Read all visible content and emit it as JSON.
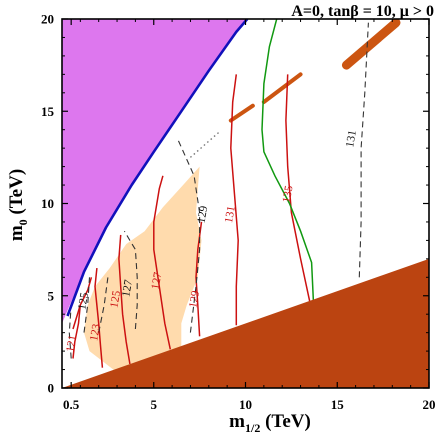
{
  "chart_data": {
    "type": "contour",
    "title": "A=0, tanβ = 10, μ > 0",
    "xlabel": "m",
    "xlabel_sub": "1/2",
    "xlabel_unit": " (TeV)",
    "ylabel": "m",
    "ylabel_sub": "0",
    "ylabel_unit": " (TeV)",
    "xlim": [
      0,
      20
    ],
    "ylim": [
      0,
      20
    ],
    "grid": false,
    "x_ticks": [
      {
        "v": 0.5,
        "label": "0.5"
      },
      {
        "v": 5,
        "label": "5"
      },
      {
        "v": 10,
        "label": "10"
      },
      {
        "v": 15,
        "label": "15"
      },
      {
        "v": 20,
        "label": "20"
      }
    ],
    "y_ticks": [
      {
        "v": 0,
        "label": "0"
      },
      {
        "v": 5,
        "label": "5"
      },
      {
        "v": 10,
        "label": "10"
      },
      {
        "v": 15,
        "label": "15"
      },
      {
        "v": 20,
        "label": "20"
      }
    ],
    "colors": {
      "excluded_top": "#dd77ee",
      "excluded_bottom": "#bb4411",
      "dm_band": "#cc5511",
      "peach_band": "#ffdbad",
      "mh_contour": "#cc1111",
      "dashed_contour": "#333333",
      "green_line": "#119911",
      "blue_boundary": "#1111bb"
    },
    "regions": {
      "top_left": [
        [
          0,
          20
        ],
        [
          10.1,
          20
        ],
        [
          9.5,
          19.3
        ],
        [
          8.0,
          17.2
        ],
        [
          6.5,
          15.0
        ],
        [
          5.0,
          12.8
        ],
        [
          3.8,
          11.0
        ],
        [
          2.4,
          8.7
        ],
        [
          1.2,
          6.3
        ],
        [
          0,
          3.5
        ]
      ],
      "bottom_triangle": [
        [
          0,
          0
        ],
        [
          20,
          0
        ],
        [
          20,
          7.0
        ]
      ],
      "peach": [
        [
          1.5,
          2.0
        ],
        [
          1.2,
          3.0
        ],
        [
          1.4,
          4.5
        ],
        [
          1.8,
          5.5
        ],
        [
          2.6,
          6.5
        ],
        [
          3.5,
          7.8
        ],
        [
          4.5,
          8.5
        ],
        [
          5.5,
          9.8
        ],
        [
          6.6,
          11.0
        ],
        [
          7.5,
          12.0
        ],
        [
          7.4,
          10.8
        ],
        [
          7.3,
          9.5
        ],
        [
          7.6,
          8.0
        ],
        [
          7.4,
          6.0
        ],
        [
          6.8,
          4.5
        ],
        [
          6.5,
          3.5
        ],
        [
          6.5,
          2.2
        ],
        [
          4.0,
          1.0
        ],
        [
          2.8,
          1.0
        ]
      ]
    },
    "blue_boundary": [
      [
        0.3,
        3.9
      ],
      [
        1.2,
        6.3
      ],
      [
        2.4,
        8.7
      ],
      [
        3.8,
        11.0
      ],
      [
        5.0,
        12.8
      ],
      [
        6.5,
        15.0
      ],
      [
        8.0,
        17.2
      ],
      [
        9.5,
        19.3
      ],
      [
        10.1,
        20.0
      ]
    ],
    "dm_funnel": [
      {
        "x": [
          15.5,
          18.2
        ],
        "y": [
          17.5,
          19.8
        ]
      },
      {
        "x": [
          11.0,
          13.0
        ],
        "y": [
          15.5,
          17.0
        ]
      },
      {
        "x": [
          9.2,
          10.4
        ],
        "y": [
          14.5,
          15.3
        ]
      }
    ],
    "green_line": [
      [
        11.7,
        20.0
      ],
      [
        11.3,
        18.5
      ],
      [
        11.0,
        16.5
      ],
      [
        10.9,
        14.0
      ],
      [
        11.0,
        12.8
      ],
      [
        11.6,
        11.5
      ],
      [
        12.4,
        10.0
      ],
      [
        13.0,
        8.5
      ],
      [
        13.6,
        6.8
      ],
      [
        13.7,
        4.7
      ]
    ],
    "contours": [
      {
        "label": "121",
        "style": "solid",
        "pts": [
          [
            0.6,
            1.6
          ],
          [
            0.7,
            2.5
          ],
          [
            0.9,
            3.5
          ],
          [
            1.0,
            4.5
          ]
        ]
      },
      {
        "label": "123",
        "style": "solid",
        "pts": [
          [
            2.2,
            1.1
          ],
          [
            2.1,
            2.3
          ],
          [
            2.0,
            3.5
          ],
          [
            1.8,
            5.5
          ],
          [
            1.9,
            6.5
          ]
        ]
      },
      {
        "label": "125",
        "style": "solid",
        "pts": [
          [
            3.7,
            1.3
          ],
          [
            3.5,
            2.5
          ],
          [
            3.3,
            4.0
          ],
          [
            3.2,
            5.5
          ],
          [
            3.1,
            7.0
          ],
          [
            3.2,
            8.3
          ]
        ]
      },
      {
        "label": "127",
        "style": "solid",
        "pts": [
          [
            5.9,
            2.1
          ],
          [
            5.6,
            3.5
          ],
          [
            5.3,
            5.5
          ],
          [
            5.0,
            7.5
          ],
          [
            5.0,
            9.0
          ],
          [
            5.3,
            10.8
          ],
          [
            5.5,
            11.5
          ]
        ]
      },
      {
        "label": "129",
        "style": "solid",
        "pts": [
          [
            7.5,
            2.8
          ],
          [
            7.4,
            4.5
          ],
          [
            7.3,
            6.0
          ],
          [
            7.4,
            7.5
          ],
          [
            7.6,
            9.0
          ]
        ]
      },
      {
        "label": "131",
        "style": "solid",
        "pts": [
          [
            9.5,
            3.4
          ],
          [
            9.5,
            5.5
          ],
          [
            9.6,
            8.0
          ],
          [
            9.4,
            10.5
          ],
          [
            9.2,
            13.0
          ],
          [
            9.3,
            15.5
          ],
          [
            9.5,
            17.0
          ]
        ]
      },
      {
        "label": "135",
        "style": "solid",
        "pts": [
          [
            13.5,
            4.7
          ],
          [
            13.0,
            7.0
          ],
          [
            12.5,
            9.5
          ],
          [
            12.3,
            12.0
          ],
          [
            12.2,
            14.5
          ],
          [
            12.3,
            17.0
          ]
        ]
      },
      {
        "label": "",
        "style": "solid",
        "pts": [
          [
            0.6,
            3.2
          ],
          [
            1.0,
            4.5
          ],
          [
            1.4,
            5.3
          ],
          [
            1.6,
            6.0
          ]
        ]
      },
      {
        "label": "",
        "style": "dashed",
        "pts": [
          [
            0.5,
            1.6
          ],
          [
            0.4,
            3.0
          ],
          [
            0.5,
            4.5
          ]
        ]
      },
      {
        "label": "",
        "style": "dashed",
        "pts": [
          [
            1.2,
            3.0
          ],
          [
            1.4,
            4.5
          ],
          [
            1.5,
            6.0
          ]
        ]
      },
      {
        "label": "",
        "style": "dashed",
        "pts": [
          [
            2.0,
            3.0
          ],
          [
            2.3,
            4.5
          ],
          [
            2.5,
            6.0
          ]
        ]
      },
      {
        "label": "127",
        "style": "dashed",
        "pts": [
          [
            4.0,
            3.2
          ],
          [
            4.1,
            4.5
          ],
          [
            4.1,
            6.0
          ],
          [
            4.0,
            7.5
          ],
          [
            3.4,
            8.5
          ]
        ]
      },
      {
        "label": "129",
        "style": "dashed",
        "pts": [
          [
            7.0,
            3.0
          ],
          [
            7.3,
            5.5
          ],
          [
            7.5,
            7.5
          ],
          [
            7.5,
            9.5
          ],
          [
            7.2,
            11.5
          ],
          [
            6.3,
            13.5
          ]
        ]
      },
      {
        "label": "131",
        "style": "dashed",
        "pts": [
          [
            16.2,
            6.0
          ],
          [
            16.3,
            9.0
          ],
          [
            16.3,
            13.0
          ],
          [
            16.5,
            16.0
          ],
          [
            16.7,
            19.8
          ]
        ]
      }
    ],
    "contour_labels": [
      {
        "text": "121",
        "x": 0.55,
        "y": 2.4,
        "color": "red",
        "rot": -80
      },
      {
        "text": "123",
        "x": 1.85,
        "y": 3.0,
        "color": "red",
        "rot": -80
      },
      {
        "text": "125",
        "x": 1.2,
        "y": 4.7,
        "color": "black",
        "rot": -80
      },
      {
        "text": "125",
        "x": 2.95,
        "y": 4.8,
        "color": "red",
        "rot": -80
      },
      {
        "text": "127",
        "x": 3.6,
        "y": 5.4,
        "color": "black",
        "rot": -80
      },
      {
        "text": "127",
        "x": 5.2,
        "y": 5.8,
        "color": "red",
        "rot": -80
      },
      {
        "text": "129",
        "x": 7.25,
        "y": 4.8,
        "color": "red",
        "rot": -80
      },
      {
        "text": "129",
        "x": 7.7,
        "y": 9.4,
        "color": "black",
        "rot": -80
      },
      {
        "text": "131",
        "x": 9.2,
        "y": 9.4,
        "color": "red",
        "rot": -80
      },
      {
        "text": "135",
        "x": 12.35,
        "y": 10.5,
        "color": "red",
        "rot": -80
      },
      {
        "text": "131",
        "x": 15.8,
        "y": 13.5,
        "color": "black",
        "rot": -80
      }
    ]
  }
}
